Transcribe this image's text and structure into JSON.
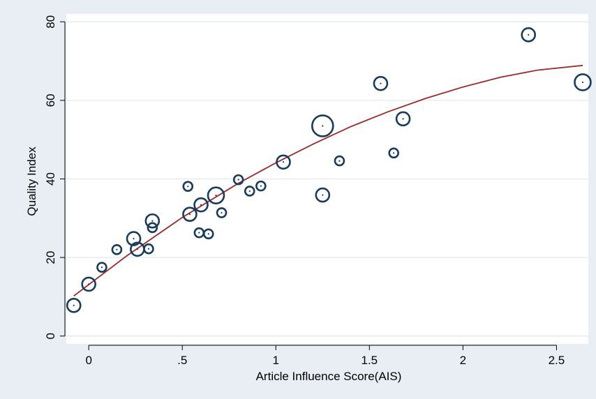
{
  "chart_data": {
    "type": "scatter",
    "title": "",
    "xlabel": "Article Influence Score(AIS)",
    "ylabel": "Quality Index",
    "xlim": [
      -0.12,
      2.67
    ],
    "ylim": [
      -2,
      82
    ],
    "xticks": [
      {
        "value": 0,
        "label": "0"
      },
      {
        "value": 0.5,
        "label": ".5"
      },
      {
        "value": 1,
        "label": "1"
      },
      {
        "value": 1.5,
        "label": "1.5"
      },
      {
        "value": 2,
        "label": "2"
      },
      {
        "value": 2.5,
        "label": "2.5"
      }
    ],
    "yticks": [
      {
        "value": 0,
        "label": "0"
      },
      {
        "value": 20,
        "label": "20"
      },
      {
        "value": 40,
        "label": "40"
      },
      {
        "value": 60,
        "label": "60"
      },
      {
        "value": 80,
        "label": "80"
      }
    ],
    "grid": "horizontal",
    "points": [
      {
        "x": -0.08,
        "y": 7.8,
        "size": 2
      },
      {
        "x": 0.0,
        "y": 13.2,
        "size": 2
      },
      {
        "x": 0.07,
        "y": 17.5,
        "size": 1
      },
      {
        "x": 0.15,
        "y": 22.0,
        "size": 1
      },
      {
        "x": 0.24,
        "y": 24.8,
        "size": 2
      },
      {
        "x": 0.26,
        "y": 22.1,
        "size": 2
      },
      {
        "x": 0.32,
        "y": 22.2,
        "size": 1
      },
      {
        "x": 0.34,
        "y": 29.3,
        "size": 2
      },
      {
        "x": 0.34,
        "y": 27.6,
        "size": 1
      },
      {
        "x": 0.53,
        "y": 38.1,
        "size": 1
      },
      {
        "x": 0.54,
        "y": 31.0,
        "size": 2
      },
      {
        "x": 0.59,
        "y": 26.3,
        "size": 1
      },
      {
        "x": 0.6,
        "y": 33.4,
        "size": 2
      },
      {
        "x": 0.64,
        "y": 26.0,
        "size": 1
      },
      {
        "x": 0.68,
        "y": 35.8,
        "size": 3
      },
      {
        "x": 0.71,
        "y": 31.4,
        "size": 1
      },
      {
        "x": 0.8,
        "y": 39.8,
        "size": 1
      },
      {
        "x": 0.86,
        "y": 36.9,
        "size": 1
      },
      {
        "x": 0.92,
        "y": 38.2,
        "size": 1
      },
      {
        "x": 1.04,
        "y": 44.3,
        "size": 2
      },
      {
        "x": 1.25,
        "y": 53.5,
        "size": 4
      },
      {
        "x": 1.25,
        "y": 35.9,
        "size": 2
      },
      {
        "x": 1.34,
        "y": 44.6,
        "size": 1
      },
      {
        "x": 1.56,
        "y": 64.3,
        "size": 2
      },
      {
        "x": 1.63,
        "y": 46.6,
        "size": 1
      },
      {
        "x": 1.68,
        "y": 55.3,
        "size": 2
      },
      {
        "x": 2.35,
        "y": 76.7,
        "size": 2
      },
      {
        "x": 2.64,
        "y": 64.6,
        "size": 3
      }
    ],
    "fit": {
      "type": "quadratic",
      "x": [
        -0.08,
        0.2,
        0.5,
        0.8,
        1.0,
        1.2,
        1.4,
        1.6,
        1.8,
        2.0,
        2.2,
        2.4,
        2.64
      ],
      "y": [
        10.2,
        20.3,
        30.2,
        38.9,
        44.1,
        48.9,
        53.3,
        57.1,
        60.5,
        63.4,
        65.9,
        67.7,
        68.9
      ]
    },
    "colors": {
      "marker": "#1a3c5c",
      "fit_line": "#9b2a2a",
      "plot_bg": "#ffffff",
      "outer_bg": "#e8eef3",
      "grid": "#e1e8ee"
    }
  }
}
